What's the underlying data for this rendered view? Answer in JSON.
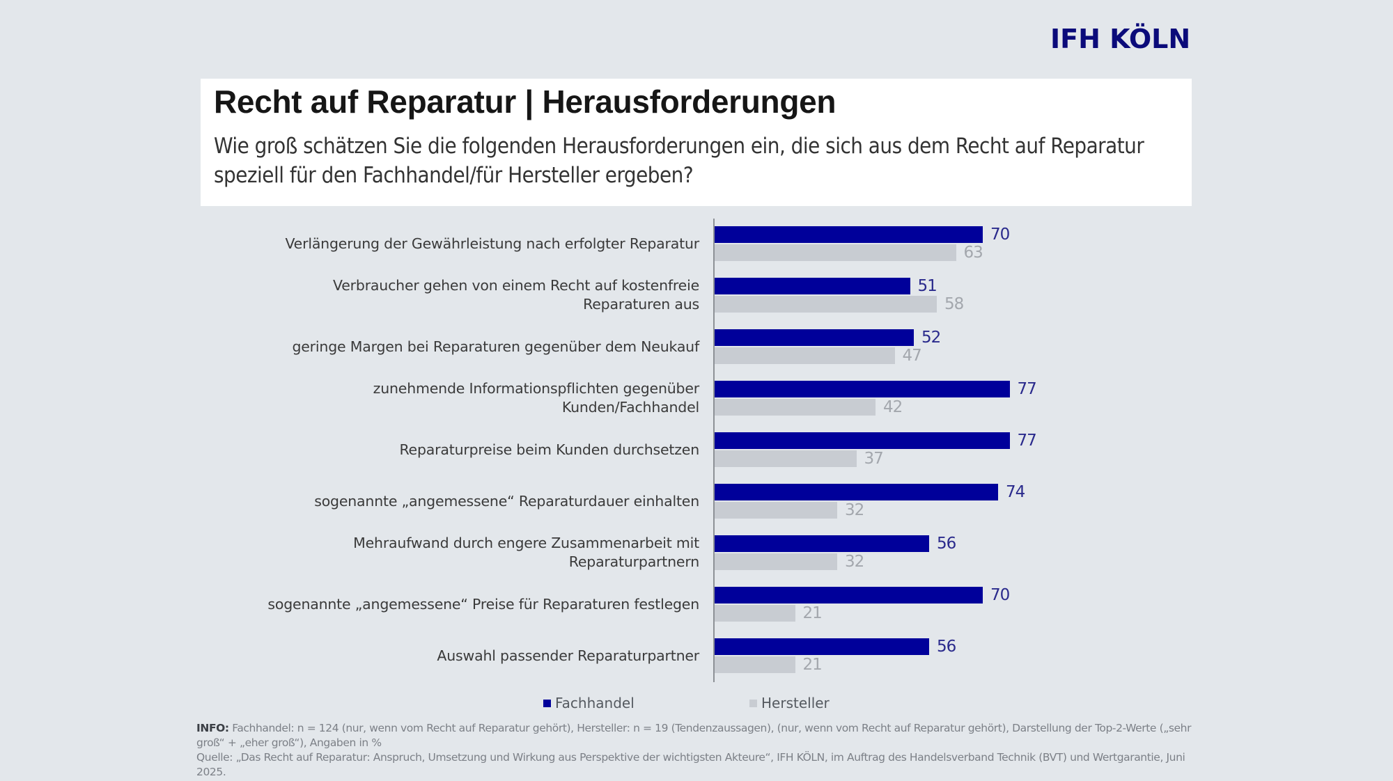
{
  "brand": {
    "logo_text": "IFH KÖLN",
    "logo_color": "#0b0b7a"
  },
  "header": {
    "title": "Recht auf Reparatur | Herausforderungen",
    "subtitle": "Wie groß schätzen Sie die folgenden Herausforderungen ein, die sich aus dem Recht auf Reparatur speziell für den Fachhandel/für Hersteller ergeben?"
  },
  "chart_data": {
    "type": "bar",
    "orientation": "horizontal",
    "title": "Recht auf Reparatur | Herausforderungen",
    "xlabel": "",
    "ylabel": "",
    "unit": "%",
    "xlim": [
      0,
      100
    ],
    "grid": false,
    "legend_position": "bottom",
    "categories": [
      "Verlängerung der Gewährleistung nach erfolgter Reparatur",
      "Verbraucher gehen von einem Recht auf kostenfreie Reparaturen aus",
      "geringe Margen bei Reparaturen gegenüber dem Neukauf",
      "zunehmende Informationspflichten gegenüber Kunden/Fachhandel",
      "Reparaturpreise beim Kunden durchsetzen",
      "sogenannte „angemessene“ Reparaturdauer einhalten",
      "Mehraufwand durch engere Zusammenarbeit mit Reparaturpartnern",
      "sogenannte „angemessene“ Preise für Reparaturen festlegen",
      "Auswahl passender Reparaturpartner"
    ],
    "category_lines": [
      [
        "Verlängerung der Gewährleistung nach erfolgter Reparatur"
      ],
      [
        "Verbraucher gehen von einem Recht auf kostenfreie",
        "Reparaturen aus"
      ],
      [
        "geringe Margen bei Reparaturen gegenüber dem Neukauf"
      ],
      [
        "zunehmende Informationspflichten gegenüber",
        "Kunden/Fachhandel"
      ],
      [
        "Reparaturpreise beim Kunden durchsetzen"
      ],
      [
        "sogenannte „angemessene“ Reparaturdauer einhalten"
      ],
      [
        "Mehraufwand durch engere Zusammenarbeit mit",
        "Reparaturpartnern"
      ],
      [
        "sogenannte „angemessene“ Preise für Reparaturen festlegen"
      ],
      [
        "Auswahl passender Reparaturpartner"
      ]
    ],
    "series": [
      {
        "name": "Fachhandel",
        "color": "#00009a",
        "label_color": "#2a2a8c",
        "values": [
          70,
          51,
          52,
          77,
          77,
          74,
          56,
          70,
          56
        ]
      },
      {
        "name": "Hersteller",
        "color": "#c8ccd2",
        "label_color": "#a3a7ad",
        "values": [
          63,
          58,
          47,
          42,
          37,
          32,
          32,
          21,
          21
        ]
      }
    ]
  },
  "legend": [
    {
      "label": "Fachhandel",
      "color": "#00009a"
    },
    {
      "label": "Hersteller",
      "color": "#c8ccd2"
    }
  ],
  "footnote": {
    "info_label": "INFO:",
    "info_text": " Fachhandel: n = 124 (nur, wenn vom Recht auf Reparatur gehört), Hersteller: n = 19 (Tendenzaussagen), (nur, wenn vom Recht auf Reparatur gehört), Darstellung der Top-2-Werte („sehr groß“ + „eher groß“), Angaben in %",
    "source_text": "Quelle: „Das Recht auf Reparatur: Anspruch, Umsetzung und Wirkung aus Perspektive der wichtigsten Akteure“, IFH KÖLN, im Auftrag des Handelsverband Technik (BVT) und Wertgarantie, Juni 2025."
  }
}
